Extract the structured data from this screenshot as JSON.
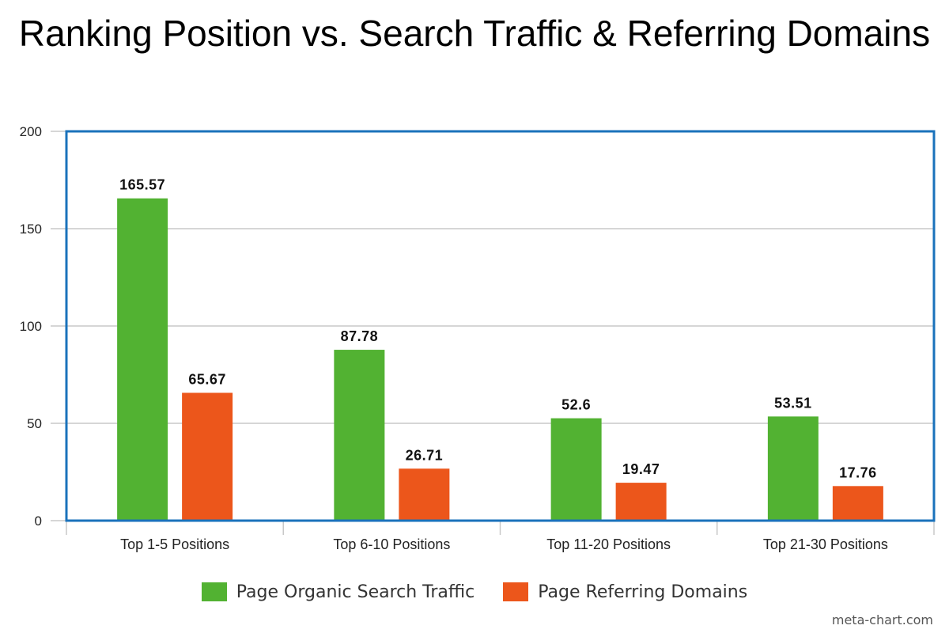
{
  "chart_data": {
    "type": "bar",
    "title": "Ranking Position vs. Search Traffic & Referring Domains",
    "categories": [
      "Top 1-5 Positions",
      "Top 6-10 Positions",
      "Top 11-20 Positions",
      "Top 21-30 Positions"
    ],
    "series": [
      {
        "name": "Page Organic Search Traffic",
        "color": "#52b232",
        "values": [
          165.57,
          87.78,
          52.6,
          53.51
        ],
        "labels": [
          "165.57",
          "87.78",
          "52.6",
          "53.51"
        ]
      },
      {
        "name": "Page Referring Domains",
        "color": "#ec561b",
        "values": [
          65.67,
          26.71,
          19.47,
          17.76
        ],
        "labels": [
          "65.67",
          "26.71",
          "19.47",
          "17.76"
        ]
      }
    ],
    "xlabel": "",
    "ylabel": "",
    "ylim": [
      0,
      200
    ],
    "yticks": [
      0,
      50,
      100,
      150,
      200
    ],
    "ytick_labels": [
      "0",
      "50",
      "100",
      "150",
      "200"
    ],
    "grid": true,
    "legend_position": "bottom",
    "frame_color": "#1a72bb"
  },
  "watermark": "meta-chart.com"
}
